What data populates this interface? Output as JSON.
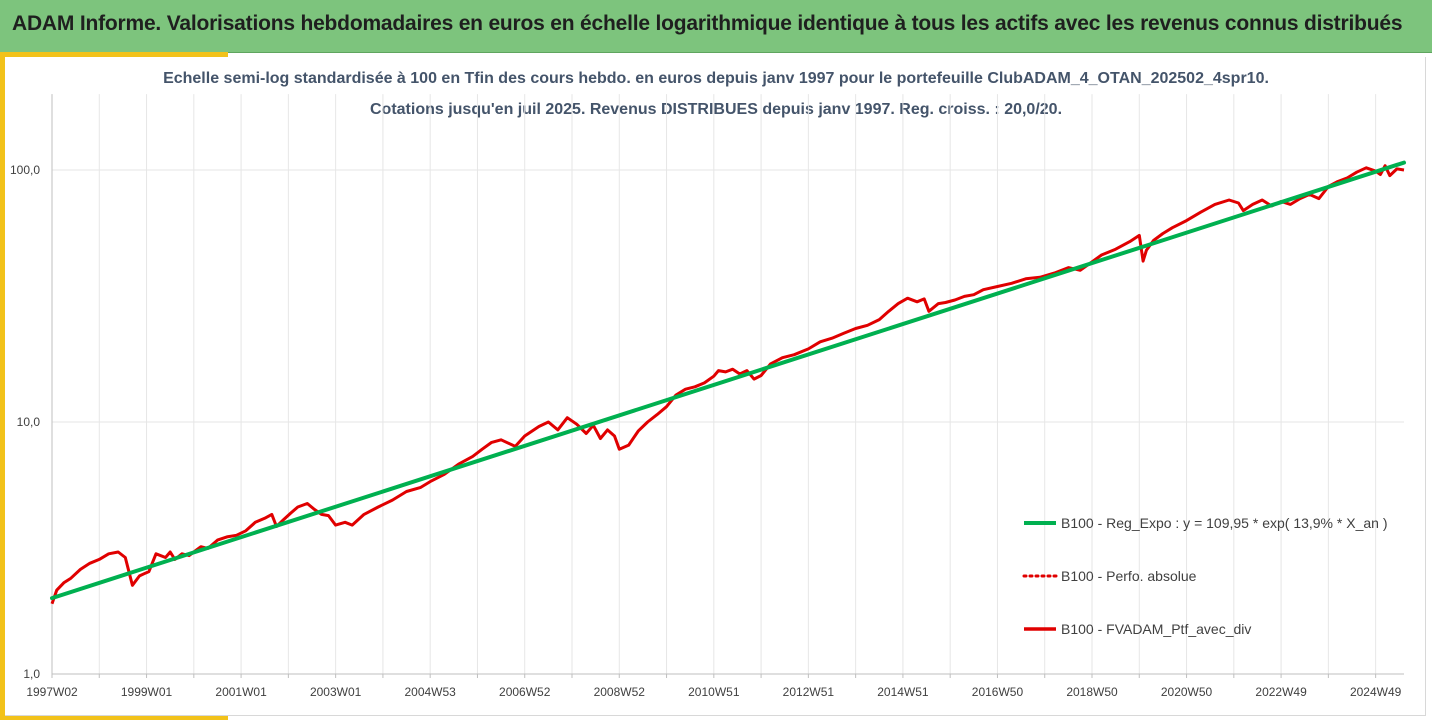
{
  "banner": {
    "title": "ADAM Informe. Valorisations hebdomadaires en euros en échelle logarithmique identique à tous les actifs avec les revenus connus distribués"
  },
  "colors": {
    "banner_bg": "#7dc47d",
    "accent": "#f2c21a",
    "regression": "#00b050",
    "portfolio": "#e00000",
    "grid": "#e6e6e6"
  },
  "chart_data": {
    "type": "line",
    "title_line1": "Echelle semi-log standardisée  à 100 en Tfin des cours hebdo.  en euros depuis janv 1997 pour le portefeuille ClubADAM_4_OTAN_202502_4spr10.",
    "title_line2": "Cotations  jusqu'en juil 2025. Revenus DISTRIBUES depuis janv 1997. Reg. croiss. : 20,0/20.",
    "y_scale": "log",
    "ylim": [
      1,
      200
    ],
    "y_ticks": [
      {
        "value": 1,
        "label": "1,0"
      },
      {
        "value": 10,
        "label": "10,0"
      },
      {
        "value": 100,
        "label": "100,0"
      }
    ],
    "xlim": [
      1997.0,
      2025.6
    ],
    "x_ticks": [
      {
        "value": 1997.0,
        "label": "1997W02"
      },
      {
        "value": 1999.0,
        "label": "1999W01"
      },
      {
        "value": 2001.0,
        "label": "2001W01"
      },
      {
        "value": 2003.0,
        "label": "2003W01"
      },
      {
        "value": 2005.0,
        "label": "2004W53"
      },
      {
        "value": 2007.0,
        "label": "2006W52"
      },
      {
        "value": 2009.0,
        "label": "2008W52"
      },
      {
        "value": 2011.0,
        "label": "2010W51"
      },
      {
        "value": 2013.0,
        "label": "2012W51"
      },
      {
        "value": 2015.0,
        "label": "2014W51"
      },
      {
        "value": 2017.0,
        "label": "2016W50"
      },
      {
        "value": 2019.0,
        "label": "2018W50"
      },
      {
        "value": 2021.0,
        "label": "2020W50"
      },
      {
        "value": 2023.0,
        "label": "2022W49"
      },
      {
        "value": 2025.0,
        "label": "2024W49"
      }
    ],
    "x_minor_ticks": [
      1998,
      2000,
      2002,
      2004,
      2006,
      2008,
      2010,
      2012,
      2014,
      2016,
      2018,
      2020,
      2022,
      2024
    ],
    "grid": "vertical",
    "legend_position": "right",
    "series": [
      {
        "name": "B100 - Reg_Expo : y = 109,95 * exp( 13,9% *  X_an )",
        "style": "solid",
        "x": [
          1997.0,
          2025.6
        ],
        "values": [
          2.0,
          107.0
        ]
      },
      {
        "name": "B100 - Perfo. absolue",
        "style": "dotted",
        "x": [],
        "values": []
      },
      {
        "name": "B100 - FVADAM_Ptf_avec_div",
        "style": "solid",
        "x": [
          1997.0,
          1997.1,
          1997.25,
          1997.4,
          1997.6,
          1997.8,
          1998.0,
          1998.2,
          1998.4,
          1998.55,
          1998.7,
          1998.85,
          1998.95,
          1999.05,
          1999.2,
          1999.4,
          1999.5,
          1999.6,
          1999.75,
          1999.9,
          2000.0,
          2000.15,
          2000.3,
          2000.5,
          2000.7,
          2000.9,
          2001.1,
          2001.3,
          2001.5,
          2001.65,
          2001.75,
          2001.9,
          2002.05,
          2002.2,
          2002.4,
          2002.55,
          2002.7,
          2002.85,
          2003.0,
          2003.2,
          2003.35,
          2003.6,
          2003.9,
          2004.2,
          2004.5,
          2004.8,
          2005.0,
          2005.3,
          2005.6,
          2005.9,
          2006.1,
          2006.3,
          2006.5,
          2006.8,
          2007.0,
          2007.3,
          2007.5,
          2007.7,
          2007.9,
          2008.1,
          2008.3,
          2008.45,
          2008.6,
          2008.75,
          2008.9,
          2009.0,
          2009.2,
          2009.4,
          2009.6,
          2009.8,
          2010.0,
          2010.2,
          2010.4,
          2010.6,
          2010.8,
          2011.0,
          2011.1,
          2011.25,
          2011.4,
          2011.55,
          2011.7,
          2011.85,
          2012.0,
          2012.2,
          2012.45,
          2012.7,
          2013.0,
          2013.25,
          2013.5,
          2013.75,
          2014.0,
          2014.25,
          2014.5,
          2014.7,
          2014.9,
          2015.1,
          2015.3,
          2015.45,
          2015.55,
          2015.75,
          2015.9,
          2016.1,
          2016.3,
          2016.5,
          2016.7,
          2017.0,
          2017.3,
          2017.6,
          2017.9,
          2018.2,
          2018.5,
          2018.75,
          2018.95,
          2019.2,
          2019.5,
          2019.8,
          2020.0,
          2020.08,
          2020.15,
          2020.3,
          2020.5,
          2020.7,
          2021.0,
          2021.3,
          2021.6,
          2021.9,
          2022.1,
          2022.2,
          2022.4,
          2022.6,
          2022.8,
          2023.0,
          2023.2,
          2023.4,
          2023.6,
          2023.8,
          2024.0,
          2024.2,
          2024.4,
          2024.6,
          2024.8,
          2025.0,
          2025.1,
          2025.2,
          2025.3,
          2025.45,
          2025.6
        ],
        "values": [
          1.9,
          2.15,
          2.3,
          2.4,
          2.6,
          2.75,
          2.85,
          3.0,
          3.05,
          2.9,
          2.25,
          2.45,
          2.5,
          2.55,
          3.0,
          2.9,
          3.05,
          2.85,
          3.0,
          2.95,
          3.05,
          3.2,
          3.15,
          3.4,
          3.5,
          3.55,
          3.7,
          4.0,
          4.15,
          4.3,
          3.85,
          4.1,
          4.35,
          4.6,
          4.75,
          4.5,
          4.3,
          4.25,
          3.9,
          4.0,
          3.9,
          4.3,
          4.6,
          4.9,
          5.3,
          5.5,
          5.8,
          6.2,
          6.8,
          7.3,
          7.8,
          8.3,
          8.5,
          8.0,
          8.8,
          9.6,
          10.0,
          9.3,
          10.4,
          9.8,
          9.0,
          9.7,
          8.6,
          9.3,
          8.8,
          7.8,
          8.1,
          9.2,
          10.0,
          10.7,
          11.5,
          12.8,
          13.5,
          13.8,
          14.3,
          15.2,
          16.0,
          15.8,
          16.2,
          15.5,
          16.0,
          14.8,
          15.3,
          17.0,
          18.0,
          18.5,
          19.5,
          20.8,
          21.5,
          22.5,
          23.5,
          24.2,
          25.5,
          27.5,
          29.5,
          31.0,
          30.0,
          30.8,
          27.5,
          29.5,
          29.8,
          30.5,
          31.5,
          32.0,
          33.5,
          34.5,
          35.5,
          37.0,
          37.5,
          39.0,
          41.0,
          40.0,
          42.5,
          46.0,
          48.5,
          52.0,
          55.0,
          43.5,
          48.0,
          52.5,
          56.0,
          59.0,
          63.0,
          68.0,
          73.0,
          76.0,
          74.0,
          69.0,
          73.0,
          76.0,
          72.0,
          75.0,
          73.0,
          77.0,
          80.0,
          77.0,
          86.0,
          90.0,
          93.0,
          98.0,
          102.0,
          99.0,
          96.0,
          104.0,
          95.0,
          101.0,
          100.0
        ]
      }
    ]
  }
}
